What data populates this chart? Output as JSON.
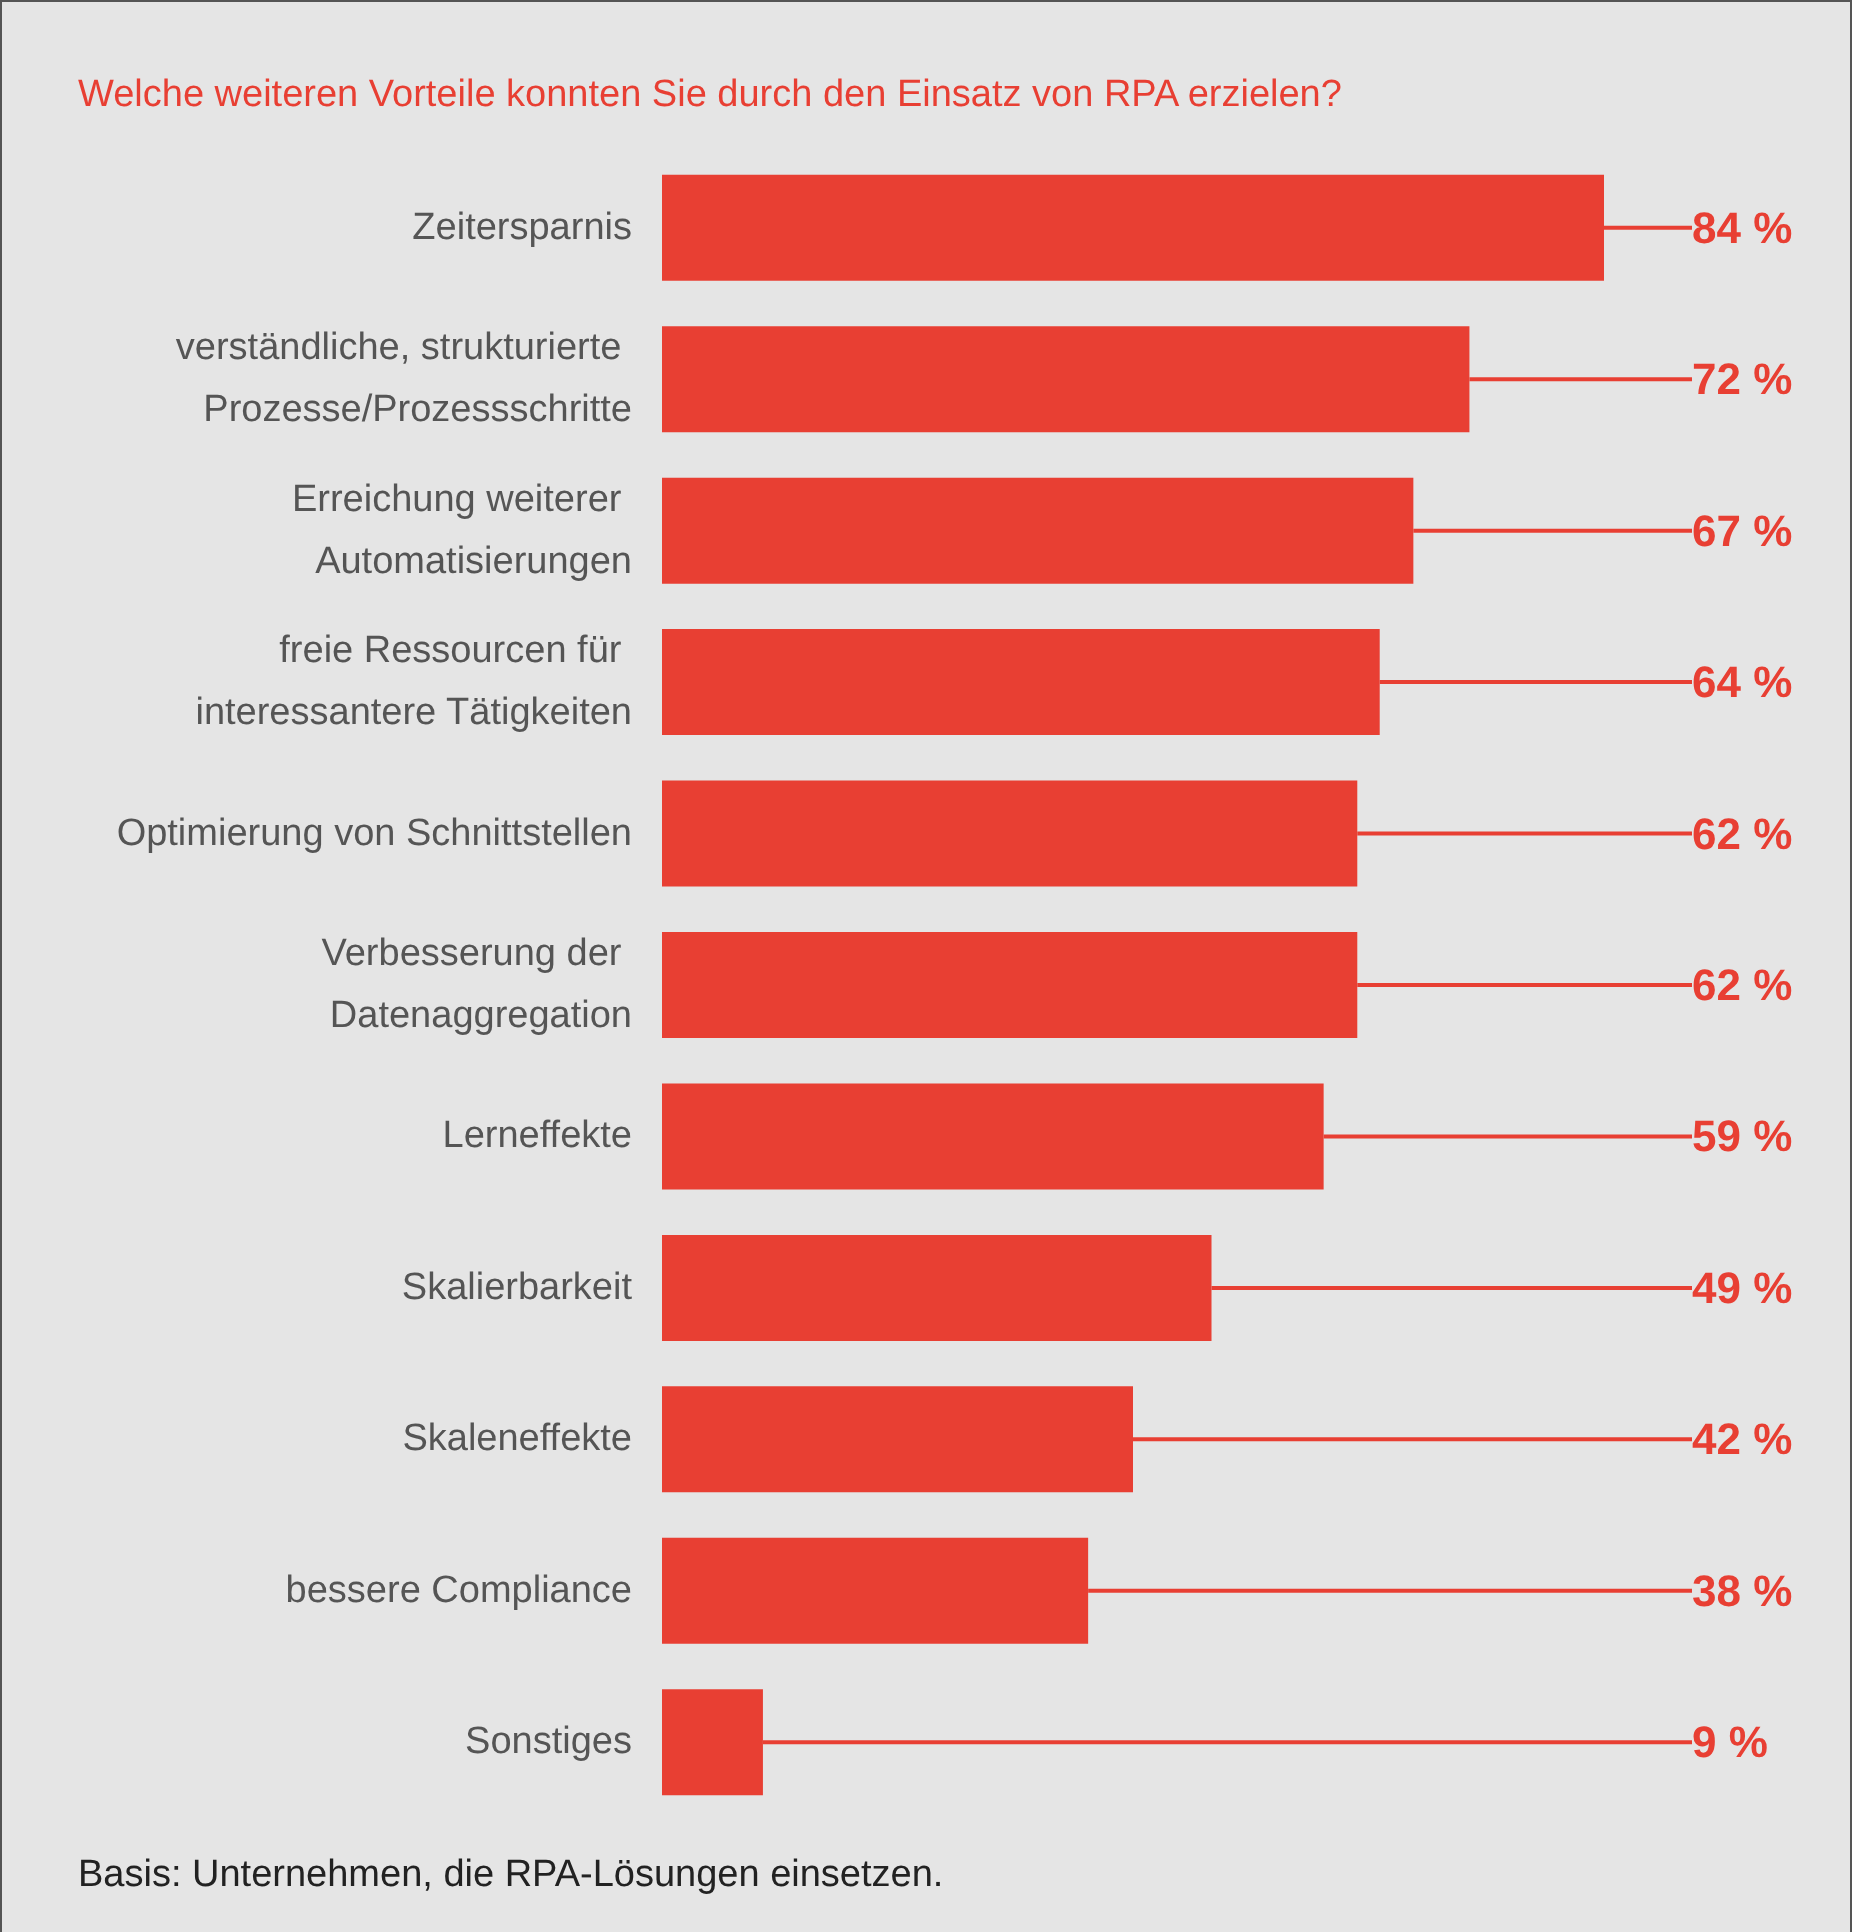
{
  "chart_data": {
    "type": "bar",
    "orientation": "horizontal",
    "title": "Welche weiteren Vorteile konnten Sie durch den Einsatz von RPA erzielen?",
    "categories": [
      "Zeitersparnis",
      "verständliche, strukturierte Prozesse/Prozessschritte",
      "Erreichung weiterer Automatisierungen",
      "freie Ressourcen für interessantere Tätigkeiten",
      "Optimierung von Schnittstellen",
      "Verbesserung der Datenaggregation",
      "Lerneffekte",
      "Skalierbarkeit",
      "Skaleneffekte",
      "bessere Compliance",
      "Sonstiges"
    ],
    "values": [
      84,
      72,
      67,
      64,
      62,
      62,
      59,
      49,
      42,
      38,
      9
    ],
    "value_labels": [
      "84 %",
      "72 %",
      "67 %",
      "64 %",
      "62 %",
      "62 %",
      "59 %",
      "49 %",
      "42 %",
      "38 %",
      "9 %"
    ],
    "color": "#e83f33",
    "annotations": [
      "Basis: Unternehmen, die RPA-Lösungen einsetzen."
    ]
  }
}
